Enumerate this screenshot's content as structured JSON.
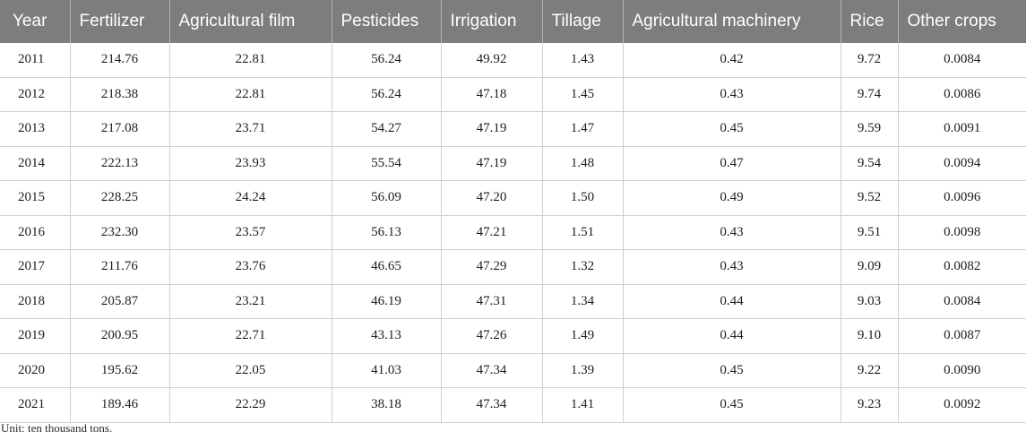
{
  "table": {
    "columns": [
      "Year",
      "Fertilizer",
      "Agricultural film",
      "Pesticides",
      "Irrigation",
      "Tillage",
      "Agricultural machinery",
      "Rice",
      "Other crops"
    ],
    "rows": [
      [
        "2011",
        "214.76",
        "22.81",
        "56.24",
        "49.92",
        "1.43",
        "0.42",
        "9.72",
        "0.0084"
      ],
      [
        "2012",
        "218.38",
        "22.81",
        "56.24",
        "47.18",
        "1.45",
        "0.43",
        "9.74",
        "0.0086"
      ],
      [
        "2013",
        "217.08",
        "23.71",
        "54.27",
        "47.19",
        "1.47",
        "0.45",
        "9.59",
        "0.0091"
      ],
      [
        "2014",
        "222.13",
        "23.93",
        "55.54",
        "47.19",
        "1.48",
        "0.47",
        "9.54",
        "0.0094"
      ],
      [
        "2015",
        "228.25",
        "24.24",
        "56.09",
        "47.20",
        "1.50",
        "0.49",
        "9.52",
        "0.0096"
      ],
      [
        "2016",
        "232.30",
        "23.57",
        "56.13",
        "47.21",
        "1.51",
        "0.43",
        "9.51",
        "0.0098"
      ],
      [
        "2017",
        "211.76",
        "23.76",
        "46.65",
        "47.29",
        "1.32",
        "0.43",
        "9.09",
        "0.0082"
      ],
      [
        "2018",
        "205.87",
        "23.21",
        "46.19",
        "47.31",
        "1.34",
        "0.44",
        "9.03",
        "0.0084"
      ],
      [
        "2019",
        "200.95",
        "22.71",
        "43.13",
        "47.26",
        "1.49",
        "0.44",
        "9.10",
        "0.0087"
      ],
      [
        "2020",
        "195.62",
        "22.05",
        "41.03",
        "47.34",
        "1.39",
        "0.45",
        "9.22",
        "0.0090"
      ],
      [
        "2021",
        "189.46",
        "22.29",
        "38.18",
        "47.34",
        "1.41",
        "0.45",
        "9.23",
        "0.0092"
      ]
    ],
    "note": "Unit: ten thousand tons."
  },
  "colors": {
    "header_background": "#7d7d7d",
    "header_text": "#ffffff",
    "grid_line": "#cfcfcf"
  }
}
